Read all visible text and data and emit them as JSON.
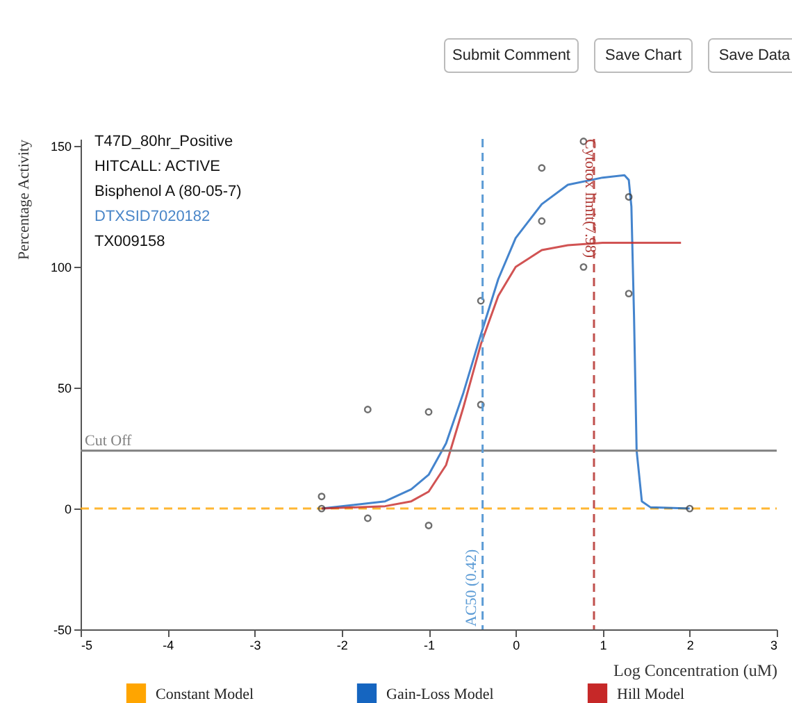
{
  "chart_data": {
    "type": "line",
    "xlabel": "Log Concentration (uM)",
    "ylabel": "Percentage Activity",
    "xlim": [
      -5,
      3
    ],
    "xticks": [
      -5,
      -4,
      -3,
      -2,
      -1,
      0,
      1,
      2,
      3
    ],
    "ylim": [
      -50,
      153
    ],
    "yticks": [
      -50,
      0,
      50,
      100,
      150
    ],
    "grid": false,
    "legend": "bottom",
    "series": [
      {
        "name": "Constant Model",
        "line_style": "dashed",
        "color": "#ffa500",
        "x": [
          -5,
          3
        ],
        "values": [
          0,
          0
        ]
      },
      {
        "name": "Gain-Loss Model",
        "line_style": "solid",
        "color": "#1565c0",
        "x": [
          -2.23,
          -1.5,
          -1.2,
          -1,
          -0.8,
          -0.6,
          -0.4,
          -0.2,
          0,
          0.3,
          0.6,
          1,
          1.25,
          1.3,
          1.33,
          1.36,
          1.39,
          1.45,
          1.55,
          2
        ],
        "values": [
          0,
          3,
          8,
          14,
          27,
          48,
          72,
          95,
          112,
          126,
          134,
          137,
          138,
          136,
          125,
          80,
          24,
          3,
          0.5,
          0
        ]
      },
      {
        "name": "Hill Model",
        "line_style": "solid",
        "color": "#c62828",
        "x": [
          -2.23,
          -1.5,
          -1.2,
          -1,
          -0.8,
          -0.6,
          -0.4,
          -0.2,
          0,
          0.3,
          0.6,
          1,
          1.9
        ],
        "values": [
          0,
          1,
          3,
          7,
          18,
          42,
          68,
          88,
          100,
          107,
          109,
          110,
          110
        ]
      },
      {
        "type": "scatter",
        "marker": "circle",
        "color": "#333333",
        "x": [
          -2.23,
          -2.23,
          -1.7,
          -1.7,
          -1,
          -1,
          -0.4,
          -0.4,
          0.3,
          0.3,
          0.78,
          0.78,
          1.3,
          1.3,
          2
        ],
        "values": [
          5,
          0,
          41,
          -4,
          40,
          -7,
          86,
          43,
          141,
          119,
          152,
          100,
          129,
          89,
          0
        ]
      }
    ],
    "ref_lines": [
      {
        "axis": "y",
        "value": 24,
        "label": "Cut Off",
        "color": "#808080",
        "line_style": "solid"
      },
      {
        "axis": "x",
        "value": -0.38,
        "label": "AC50 (0.42)",
        "color": "#5b9bd5",
        "line_style": "dashed"
      },
      {
        "axis": "x",
        "value": 0.9,
        "label": "Cytotox limit(7.98)",
        "color": "#c0504d",
        "line_style": "dashed"
      }
    ],
    "annotations": [
      "T47D_80hr_Positive",
      "HITCALL: ACTIVE",
      "Bisphenol A (80-05-7)",
      "DTXSID7020182",
      "TX009158",
      "Submit Comment",
      "Save Chart",
      "Save Data"
    ]
  }
}
